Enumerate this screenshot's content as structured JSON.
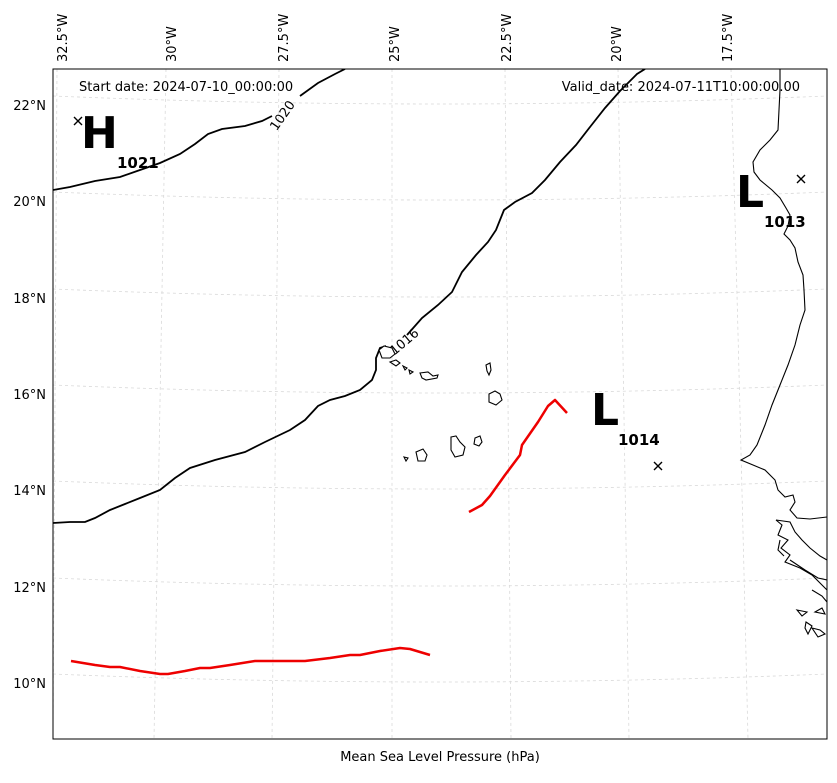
{
  "header": {
    "start_date": "Start date: 2024-07-10_00:00:00",
    "valid_date": "Valid_date: 2024-07-11T10:00:00.00"
  },
  "footer": {
    "xlabel": "Mean Sea Level Pressure (hPa)"
  },
  "axes": {
    "lon_ticks": [
      "32.5°W",
      "30°W",
      "27.5°W",
      "25°W",
      "22.5°W",
      "20°W",
      "17.5°W"
    ],
    "lat_ticks": [
      "22°N",
      "20°N",
      "18°N",
      "16°N",
      "14°N",
      "12°N",
      "10°N"
    ]
  },
  "pressure_centers": [
    {
      "letter": "H",
      "value": "1021"
    },
    {
      "letter": "L",
      "value": "1013"
    },
    {
      "letter": "L",
      "value": "1014"
    }
  ],
  "contour_labels": [
    "1020",
    "1016"
  ],
  "colors": {
    "isobar": "#000000",
    "front": "#ee0000",
    "grid": "#d9d9d9"
  }
}
